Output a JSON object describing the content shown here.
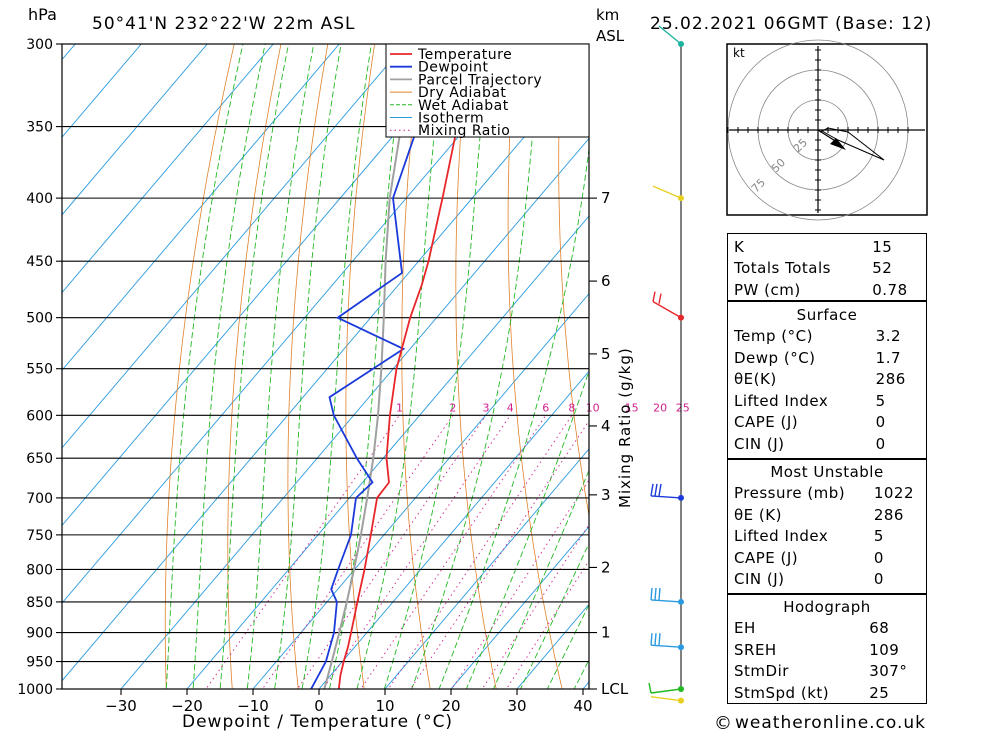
{
  "header": {
    "pressure_unit": "hPa",
    "location": "50°41'N  232°22'W  22m  ASL",
    "height_unit": "km",
    "height_unit_sub": "ASL",
    "datetime": "25.02.2021  06GMT  (Base: 12)"
  },
  "footer": {
    "copyright_symbol": "©",
    "site": "weatheronline.co.uk"
  },
  "colors": {
    "temperature": "#e8262a",
    "dewpoint": "#1a3adb",
    "parcel": "#a0a0a0",
    "dry_adiabat": "#e0822a",
    "wet_adiabat": "#22b822",
    "isotherm": "#2a9be0",
    "mixing_ratio": "#d0208e"
  },
  "chart_data": {
    "type": "line",
    "xlabel": "Dewpoint / Temperature (°C)",
    "ylabel": "hPa",
    "y2label": "Mixing Ratio (g/kg)",
    "x_ticks": [
      "−30",
      "−20",
      "−10",
      "0",
      "10",
      "20",
      "30",
      "40"
    ],
    "x_tick_values": [
      -30,
      -20,
      -10,
      0,
      10,
      20,
      30,
      40
    ],
    "pressure_levels": [
      "300",
      "350",
      "400",
      "450",
      "500",
      "550",
      "600",
      "650",
      "700",
      "750",
      "800",
      "850",
      "900",
      "950",
      "1000"
    ],
    "pressure_values": [
      300,
      350,
      400,
      450,
      500,
      550,
      600,
      650,
      700,
      750,
      800,
      850,
      900,
      950,
      1000
    ],
    "height_ticks": [
      {
        "label": "7",
        "p": 400
      },
      {
        "label": "6",
        "p": 467
      },
      {
        "label": "5",
        "p": 535
      },
      {
        "label": "4",
        "p": 612
      },
      {
        "label": "3",
        "p": 696
      },
      {
        "label": "2",
        "p": 797
      },
      {
        "label": "1",
        "p": 900
      },
      {
        "label": "LCL",
        "p": 1000
      }
    ],
    "mixing_ratio_labels": [
      "1",
      "2",
      "3",
      "4",
      "6",
      "8",
      "10",
      "15",
      "20",
      "25"
    ],
    "mixing_ratio_values": [
      1,
      2,
      3,
      4,
      6,
      8,
      10,
      15,
      20,
      25
    ],
    "legend": [
      "Temperature",
      "Dewpoint",
      "Parcel Trajectory",
      "Dry Adiabat",
      "Wet Adiabat",
      "Isotherm",
      "Mixing Ratio"
    ],
    "series": [
      {
        "name": "Temperature",
        "points": [
          {
            "p": 1022,
            "t": 3.2
          },
          {
            "p": 1000,
            "t": 3.0
          },
          {
            "p": 975,
            "t": 1.5
          },
          {
            "p": 950,
            "t": 0.2
          },
          {
            "p": 925,
            "t": -1.0
          },
          {
            "p": 900,
            "t": -2.4
          },
          {
            "p": 850,
            "t": -5.4
          },
          {
            "p": 800,
            "t": -8.5
          },
          {
            "p": 750,
            "t": -12.0
          },
          {
            "p": 700,
            "t": -15.8
          },
          {
            "p": 680,
            "t": -16.0
          },
          {
            "p": 650,
            "t": -19.5
          },
          {
            "p": 600,
            "t": -24.5
          },
          {
            "p": 550,
            "t": -29.5
          },
          {
            "p": 500,
            "t": -34.0
          },
          {
            "p": 470,
            "t": -36.5
          },
          {
            "p": 450,
            "t": -38.5
          },
          {
            "p": 400,
            "t": -44.5
          },
          {
            "p": 350,
            "t": -51.5
          },
          {
            "p": 320,
            "t": -53.5
          },
          {
            "p": 300,
            "t": -56.0
          }
        ]
      },
      {
        "name": "Dewpoint",
        "points": [
          {
            "p": 1022,
            "t": 1.7
          },
          {
            "p": 1000,
            "t": -1.2
          },
          {
            "p": 950,
            "t": -2.5
          },
          {
            "p": 900,
            "t": -5.0
          },
          {
            "p": 850,
            "t": -8.5
          },
          {
            "p": 830,
            "t": -11.0
          },
          {
            "p": 800,
            "t": -12.5
          },
          {
            "p": 750,
            "t": -15.0
          },
          {
            "p": 700,
            "t": -19.0
          },
          {
            "p": 680,
            "t": -18.5
          },
          {
            "p": 650,
            "t": -24.0
          },
          {
            "p": 600,
            "t": -33.0
          },
          {
            "p": 580,
            "t": -36.0
          },
          {
            "p": 530,
            "t": -31.0
          },
          {
            "p": 500,
            "t": -45.0
          },
          {
            "p": 460,
            "t": -41.0
          },
          {
            "p": 400,
            "t": -52.0
          },
          {
            "p": 350,
            "t": -57.5
          },
          {
            "p": 300,
            "t": -64.0
          }
        ]
      },
      {
        "name": "Parcel Trajectory",
        "points": [
          {
            "p": 1022,
            "t": 1.7
          },
          {
            "p": 1000,
            "t": 0.8
          },
          {
            "p": 950,
            "t": -1.6
          },
          {
            "p": 900,
            "t": -4.2
          },
          {
            "p": 850,
            "t": -7.0
          },
          {
            "p": 800,
            "t": -10.1
          },
          {
            "p": 750,
            "t": -13.5
          },
          {
            "p": 700,
            "t": -17.3
          },
          {
            "p": 650,
            "t": -21.5
          },
          {
            "p": 600,
            "t": -26.3
          },
          {
            "p": 550,
            "t": -31.8
          },
          {
            "p": 500,
            "t": -38.0
          },
          {
            "p": 450,
            "t": -45.0
          },
          {
            "p": 400,
            "t": -52.5
          },
          {
            "p": 350,
            "t": -60.0
          },
          {
            "p": 300,
            "t": -68.5
          }
        ]
      }
    ],
    "wind_barbs": [
      {
        "p": 300,
        "color": "#1fb39e"
      },
      {
        "p": 400,
        "color": "#e8d020"
      },
      {
        "p": 500,
        "color": "#e8262a"
      },
      {
        "p": 700,
        "color": "#1a3adb"
      },
      {
        "p": 850,
        "color": "#2a9be0"
      },
      {
        "p": 925,
        "color": "#2a9be0"
      },
      {
        "p": 1000,
        "color": "#22b822"
      },
      {
        "p": 1022,
        "color": "#e8d020"
      }
    ]
  },
  "hodograph": {
    "unit": "kt",
    "ring_labels": [
      "25",
      "50",
      "75"
    ]
  },
  "indices": {
    "general": [
      {
        "label": "K",
        "value": "15"
      },
      {
        "label": "Totals Totals",
        "value": "52"
      },
      {
        "label": "PW (cm)",
        "value": "0.78"
      }
    ],
    "surface_title": "Surface",
    "surface": [
      {
        "label": "Temp (°C)",
        "value": "3.2"
      },
      {
        "label": "Dewp (°C)",
        "value": "1.7"
      },
      {
        "label": "θE(K)",
        "value": "286"
      },
      {
        "label": "Lifted Index",
        "value": "5"
      },
      {
        "label": "CAPE (J)",
        "value": "0"
      },
      {
        "label": "CIN (J)",
        "value": "0"
      }
    ],
    "most_unstable_title": "Most Unstable",
    "most_unstable": [
      {
        "label": "Pressure (mb)",
        "value": "1022"
      },
      {
        "label": "θE (K)",
        "value": "286"
      },
      {
        "label": "Lifted Index",
        "value": "5"
      },
      {
        "label": "CAPE (J)",
        "value": "0"
      },
      {
        "label": "CIN (J)",
        "value": "0"
      }
    ],
    "hodograph_title": "Hodograph",
    "hodograph": [
      {
        "label": "EH",
        "value": "68"
      },
      {
        "label": "SREH",
        "value": "109"
      },
      {
        "label": "StmDir",
        "value": "307°"
      },
      {
        "label": "StmSpd (kt)",
        "value": "25"
      }
    ]
  }
}
